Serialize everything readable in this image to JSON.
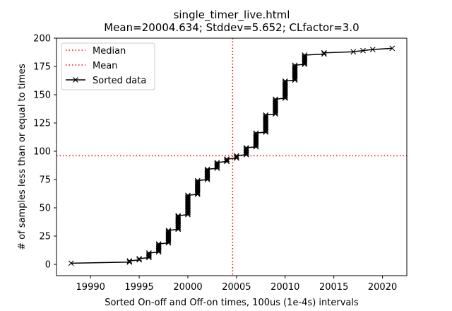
{
  "chart_data": {
    "type": "line",
    "title": "single_timer_live.html",
    "subtitle": "Mean=20004.634; Stddev=5.652; CLfactor=3.0",
    "xlabel": "Sorted On-off and Off-on times, 100us (1e-4s) intervals",
    "ylabel": "# of samples less than or equal to times",
    "xlim": [
      19986.5,
      20022.5
    ],
    "ylim": [
      -10,
      200
    ],
    "xticks": [
      19990,
      19995,
      20000,
      20005,
      20010,
      20015,
      20020
    ],
    "xtick_labels": [
      "19990",
      "19995",
      "20000",
      "20005",
      "20010",
      "20015",
      "20020"
    ],
    "yticks": [
      0,
      25,
      50,
      75,
      100,
      125,
      150,
      175,
      200
    ],
    "ytick_labels": [
      "0",
      "25",
      "50",
      "75",
      "100",
      "125",
      "150",
      "175",
      "200"
    ],
    "grid": false,
    "legend_position": "top-left",
    "reference_lines": [
      {
        "name": "Median",
        "orientation": "vertical",
        "value": 20004.6,
        "color": "#ff0000",
        "style": "dotted"
      },
      {
        "name": "Mean",
        "orientation": "horizontal",
        "value": 96,
        "color": "#ff0000",
        "style": "dotted"
      }
    ],
    "series": [
      {
        "name": "Sorted data",
        "color": "#000000",
        "marker": "x",
        "steps": [
          [
            19988,
            1,
            1
          ],
          [
            19994,
            2,
            3
          ],
          [
            19995,
            4,
            5
          ],
          [
            19996,
            6,
            10
          ],
          [
            19997,
            11,
            18
          ],
          [
            19998,
            19,
            30
          ],
          [
            19999,
            31,
            43
          ],
          [
            20000,
            44,
            61
          ],
          [
            20001,
            62,
            74
          ],
          [
            20002,
            75,
            84
          ],
          [
            20003,
            85,
            90
          ],
          [
            20004,
            91,
            93
          ],
          [
            20005,
            94,
            96
          ],
          [
            20006,
            97,
            103
          ],
          [
            20007,
            104,
            116
          ],
          [
            20008,
            117,
            132
          ],
          [
            20009,
            133,
            146
          ],
          [
            20010,
            147,
            162
          ],
          [
            20011,
            163,
            176
          ],
          [
            20012,
            177,
            185
          ],
          [
            20014,
            186,
            187
          ],
          [
            20017,
            188,
            188
          ],
          [
            20018,
            189,
            189
          ],
          [
            20019,
            190,
            190
          ],
          [
            20021,
            191,
            191
          ]
        ]
      }
    ]
  }
}
